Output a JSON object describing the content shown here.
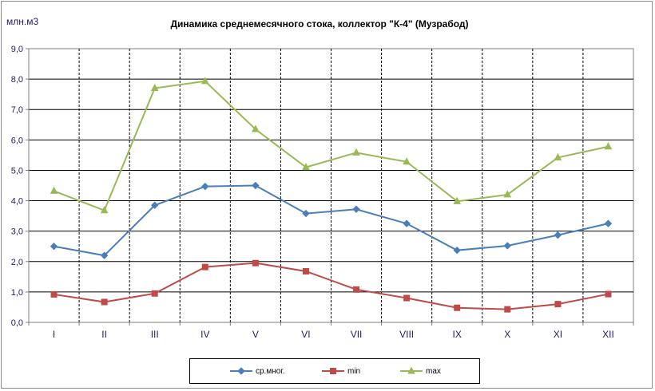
{
  "chart_data": {
    "type": "line",
    "title": "Динамика среднемесячного стока, коллектор \"К-4\" (Музрабод)",
    "ylabel": "млн.м3",
    "xlabel": "",
    "categories": [
      "I",
      "II",
      "III",
      "IV",
      "V",
      "VI",
      "VII",
      "VIII",
      "IX",
      "X",
      "XI",
      "XII"
    ],
    "y_ticks": [
      "0,0",
      "1,0",
      "2,0",
      "3,0",
      "4,0",
      "5,0",
      "6,0",
      "7,0",
      "8,0",
      "9,0"
    ],
    "ylim": [
      0,
      9
    ],
    "grid": true,
    "legend_position": "bottom",
    "series": [
      {
        "name": "ср.мног.",
        "color": "#4a7ebb",
        "marker": "diamond",
        "values": [
          2.5,
          2.2,
          3.85,
          4.47,
          4.5,
          3.58,
          3.72,
          3.25,
          2.37,
          2.52,
          2.87,
          3.25
        ]
      },
      {
        "name": "min",
        "color": "#be4b48",
        "marker": "square",
        "values": [
          0.92,
          0.67,
          0.95,
          1.82,
          1.95,
          1.68,
          1.08,
          0.8,
          0.48,
          0.43,
          0.6,
          0.93
        ]
      },
      {
        "name": "max",
        "color": "#98b954",
        "marker": "triangle",
        "values": [
          4.32,
          3.68,
          7.7,
          7.93,
          6.35,
          5.1,
          5.58,
          5.28,
          3.98,
          4.2,
          5.42,
          5.78
        ]
      }
    ]
  }
}
